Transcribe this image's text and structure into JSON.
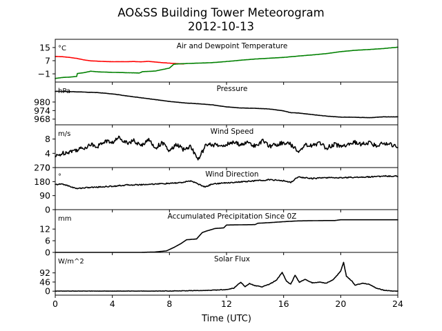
{
  "figure": {
    "title_line1": "AO&SS Building Tower Meteorogram",
    "title_line2": "2012-10-13",
    "xlabel": "Time (UTC)"
  },
  "chart_data": [
    {
      "type": "line",
      "title": "Air and Dewpoint Temperature",
      "unit": "°C",
      "xlim": [
        0,
        24
      ],
      "ylim": [
        -6,
        20
      ],
      "yticks": [
        15,
        7,
        -1
      ],
      "ytick_labels": [
        "15",
        "7",
        "−1"
      ],
      "series": [
        {
          "color": "#ff0000",
          "x": [
            0,
            0.5,
            1,
            1.5,
            2,
            2.5,
            3,
            3.5,
            4,
            4.5,
            5,
            5.5,
            6,
            6.5,
            7,
            7.5,
            8,
            8.5,
            9
          ],
          "y": [
            9.6,
            9.4,
            9.0,
            8.4,
            7.5,
            6.9,
            6.7,
            6.5,
            6.4,
            6.4,
            6.4,
            6.5,
            6.3,
            6.6,
            6.2,
            5.8,
            5.5,
            5.2,
            5.0
          ]
        },
        {
          "color": "#008000",
          "x": [
            0,
            0.5,
            1,
            1.5,
            1.55,
            2,
            2.5,
            3,
            4,
            5,
            5.9,
            6.1,
            7,
            8,
            8.3,
            8.5,
            9,
            10,
            11,
            12,
            13,
            14,
            15,
            16,
            17,
            18,
            19,
            20,
            21,
            22,
            23,
            24
          ],
          "y": [
            -3.8,
            -3.2,
            -3.0,
            -2.6,
            -0.8,
            -0.3,
            0.6,
            0.2,
            -0.1,
            -0.3,
            -0.5,
            0.3,
            0.7,
            2.5,
            4.8,
            5.0,
            5.2,
            5.5,
            5.8,
            6.5,
            7.3,
            8.0,
            8.5,
            9.0,
            9.8,
            10.5,
            11.3,
            12.5,
            13.3,
            13.8,
            14.4,
            15.2
          ]
        }
      ]
    },
    {
      "type": "line",
      "title": "Pressure",
      "unit": "hPa",
      "xlim": [
        0,
        24
      ],
      "ylim": [
        964,
        994
      ],
      "yticks": [
        980,
        974,
        968
      ],
      "ytick_labels": [
        "980",
        "974",
        "968"
      ],
      "series": [
        {
          "color": "#000000",
          "x": [
            0,
            1,
            2,
            3,
            4,
            5,
            6,
            7,
            8,
            9,
            10,
            11,
            12,
            13,
            14,
            15,
            16,
            16.5,
            17,
            18,
            19,
            20,
            21,
            22,
            23,
            24
          ],
          "y": [
            987.5,
            987.3,
            987.0,
            986.6,
            985.7,
            984.3,
            983.0,
            981.7,
            980.4,
            979.4,
            978.8,
            978.0,
            976.6,
            975.8,
            975.6,
            975.1,
            973.8,
            972.5,
            972.3,
            971.2,
            970.1,
            969.4,
            969.3,
            969.0,
            969.6,
            969.6
          ]
        }
      ]
    },
    {
      "type": "line",
      "title": "Wind Speed",
      "unit": "m/s",
      "xlim": [
        0,
        24
      ],
      "ylim": [
        0,
        12
      ],
      "yticks": [
        8,
        4,
        0
      ],
      "ytick_labels": [
        "8",
        "4",
        "0"
      ],
      "series": [
        {
          "color": "#000000",
          "x": [
            0,
            0.5,
            1,
            1.5,
            2,
            2.5,
            3,
            3.5,
            4,
            4.5,
            5,
            5.5,
            6,
            6.5,
            7,
            7.5,
            8,
            8.5,
            9,
            9.5,
            10,
            10.5,
            11,
            11.5,
            12,
            12.5,
            13,
            13.5,
            14,
            14.5,
            15,
            15.5,
            16,
            16.5,
            17,
            17.5,
            18,
            18.5,
            19,
            19.5,
            20,
            20.5,
            21,
            21.5,
            22,
            22.5,
            23,
            23.5,
            24
          ],
          "y": [
            3.0,
            4.0,
            4.5,
            5.0,
            5.5,
            6.5,
            6.0,
            7.5,
            7.0,
            8.5,
            7.0,
            7.5,
            6.0,
            8.0,
            5.5,
            7.0,
            4.5,
            6.5,
            5.0,
            6.0,
            2.0,
            6.0,
            6.5,
            6.0,
            6.5,
            7.0,
            6.5,
            7.0,
            6.0,
            7.5,
            6.0,
            6.5,
            7.0,
            6.5,
            4.5,
            6.5,
            6.0,
            7.0,
            5.5,
            6.5,
            6.0,
            6.5,
            7.0,
            6.5,
            7.0,
            6.0,
            7.0,
            6.5,
            6.0
          ]
        }
      ]
    },
    {
      "type": "line",
      "title": "Wind Direction",
      "unit": "°",
      "xlim": [
        0,
        24
      ],
      "ylim": [
        0,
        270
      ],
      "yticks": [
        270,
        180,
        90,
        0
      ],
      "ytick_labels": [
        "270",
        "180",
        "90",
        "0"
      ],
      "series": [
        {
          "color": "#000000",
          "x": [
            0,
            0.5,
            1,
            1.5,
            2,
            3,
            4,
            5,
            6,
            7,
            8,
            9,
            9.5,
            10,
            10.5,
            11,
            12,
            13,
            14,
            15,
            16,
            16.5,
            17,
            17.5,
            18,
            19,
            20,
            21,
            22,
            23,
            24
          ],
          "y": [
            160,
            165,
            150,
            135,
            140,
            145,
            150,
            158,
            160,
            165,
            168,
            175,
            185,
            165,
            145,
            165,
            172,
            178,
            185,
            192,
            185,
            175,
            210,
            205,
            200,
            205,
            205,
            208,
            210,
            215,
            215
          ]
        }
      ]
    },
    {
      "type": "line",
      "title": "Accumulated Precipitation Since 0Z",
      "unit": "mm",
      "xlim": [
        0,
        24
      ],
      "ylim": [
        0,
        22
      ],
      "yticks": [
        12,
        6,
        0
      ],
      "ytick_labels": [
        "12",
        "6",
        "0"
      ],
      "series": [
        {
          "color": "#000000",
          "x": [
            0,
            6,
            7,
            7.8,
            8.3,
            8.8,
            9.2,
            9.9,
            10.3,
            10.6,
            11.2,
            11.8,
            12,
            12.2,
            13,
            14,
            14.2,
            15,
            16,
            17,
            18,
            19,
            19.6,
            20,
            21,
            22,
            23,
            24
          ],
          "y": [
            0,
            0,
            0.2,
            0.8,
            2.5,
            4.5,
            6.5,
            6.9,
            10.2,
            11.0,
            12.3,
            12.6,
            14.1,
            14.1,
            14.2,
            14.3,
            15.0,
            15.3,
            15.8,
            16.2,
            16.3,
            16.4,
            16.4,
            16.8,
            16.8,
            16.8,
            16.8,
            16.8
          ]
        }
      ]
    },
    {
      "type": "line",
      "title": "Solar Flux",
      "unit": "W/m^2",
      "xlim": [
        0,
        24
      ],
      "ylim": [
        -20,
        195
      ],
      "yticks": [
        92,
        46,
        0
      ],
      "ytick_labels": [
        "92",
        "46",
        "0"
      ],
      "series": [
        {
          "color": "#000000",
          "x": [
            0,
            4,
            7,
            8,
            9,
            10,
            11,
            12,
            12.5,
            13,
            13.3,
            13.6,
            14,
            14.5,
            15,
            15.5,
            15.9,
            16.2,
            16.5,
            16.8,
            17.1,
            17.5,
            18,
            18.5,
            19,
            19.5,
            20,
            20.2,
            20.4,
            20.8,
            21,
            21.5,
            22,
            22.5,
            23,
            23.5,
            24
          ],
          "y": [
            0,
            0,
            0,
            1,
            2,
            3,
            5,
            8,
            15,
            45,
            22,
            38,
            28,
            22,
            35,
            55,
            95,
            50,
            35,
            80,
            45,
            60,
            42,
            45,
            40,
            60,
            100,
            145,
            75,
            50,
            30,
            40,
            35,
            15,
            5,
            1,
            0
          ]
        }
      ]
    }
  ]
}
